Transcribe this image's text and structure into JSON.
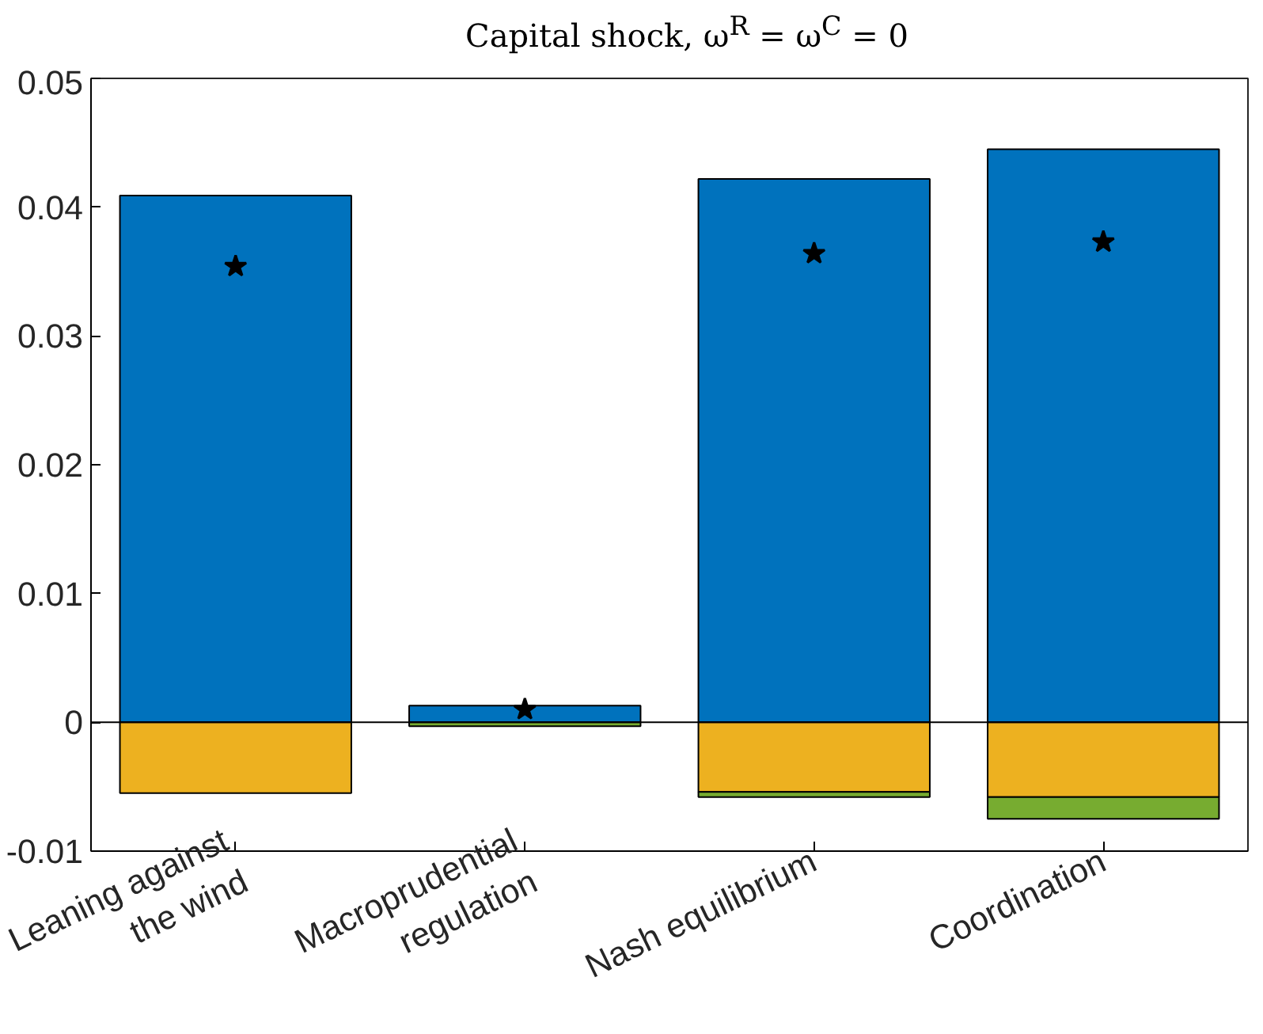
{
  "chart_data": {
    "type": "bar",
    "title": "Capital shock, ω$^{R}$ = ω$^{C}$ = 0",
    "categories": [
      "Leaning against\nthe wind",
      "Macroprudential\nregulation",
      "Nash equilibrium",
      "Coordination"
    ],
    "stacked": true,
    "series": [
      {
        "color": "#0072bd",
        "values": [
          0.0409,
          0.0013,
          0.0422,
          0.0445
        ]
      },
      {
        "color": "#edb120",
        "values": [
          -0.0055,
          null,
          -0.0054,
          -0.0058
        ]
      },
      {
        "color": "#77ac30",
        "values": [
          null,
          -0.0003,
          -0.0004,
          -0.0017
        ]
      },
      {
        "type": "scatter",
        "marker": "star",
        "color": "#000000",
        "x": [
          "Leaning against\nthe wind",
          "Macroprudential\nregulation",
          "Nash equilibrium",
          "Coordination"
        ],
        "values": [
          0.0354,
          0.001,
          0.0364,
          0.0373
        ]
      }
    ],
    "ylim": [
      -0.01,
      0.05
    ],
    "yticks": [
      -0.01,
      0,
      0.01,
      0.02,
      0.03,
      0.04,
      0.05
    ],
    "ref_lines": [
      {
        "axis": "y",
        "value": 0,
        "color": "#000000"
      }
    ],
    "grid": false
  }
}
